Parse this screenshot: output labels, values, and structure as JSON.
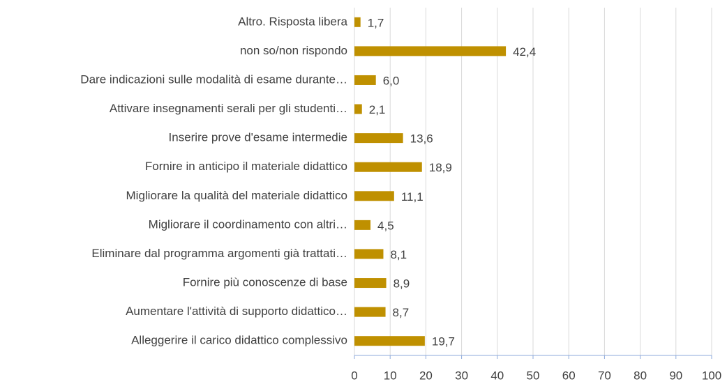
{
  "chart_data": {
    "type": "bar",
    "orientation": "horizontal",
    "categories": [
      "Altro. Risposta libera",
      "non so/non rispondo",
      "Dare indicazioni sulle modalità di esame durante…",
      "Attivare insegnamenti serali per gli studenti…",
      "Inserire prove d'esame intermedie",
      "Fornire in anticipo il materiale didattico",
      "Migliorare la qualità del materiale didattico",
      "Migliorare il coordinamento con altri…",
      "Eliminare dal programma argomenti già trattati…",
      "Fornire più conoscenze di base",
      "Aumentare l'attività di supporto didattico…",
      "Alleggerire il carico didattico complessivo"
    ],
    "values": [
      1.7,
      42.4,
      6.0,
      2.1,
      13.6,
      18.9,
      11.1,
      4.5,
      8.1,
      8.9,
      8.7,
      19.7
    ],
    "value_labels": [
      "1,7",
      "42,4",
      "6,0",
      "2,1",
      "13,6",
      "18,9",
      "11,1",
      "4,5",
      "8,1",
      "8,9",
      "8,7",
      "19,7"
    ],
    "color": "#bf9000",
    "xlim": [
      0,
      100
    ],
    "xticks": [
      0,
      10,
      20,
      30,
      40,
      50,
      60,
      70,
      80,
      90,
      100
    ],
    "grid": true
  }
}
